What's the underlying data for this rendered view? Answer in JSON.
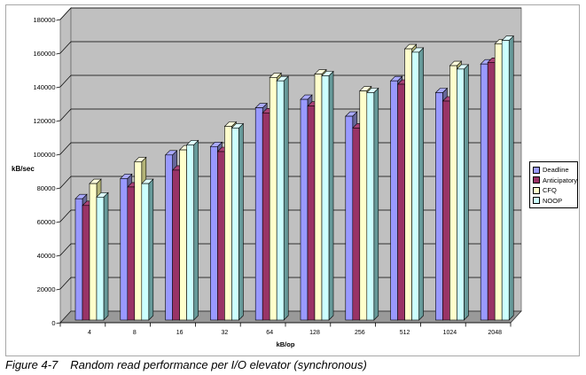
{
  "figure": {
    "caption_label": "Figure 4-7",
    "caption_text": "Random read performance per I/O elevator (synchronous)"
  },
  "chart_data": {
    "type": "bar",
    "subtype": "3d-clustered-column",
    "title": "",
    "xlabel": "kB/op",
    "ylabel": "kB/sec",
    "ylim": [
      0,
      180000
    ],
    "ytick_step": 20000,
    "grid": "horizontal",
    "legend_position": "right",
    "wall_color": "#c0c0c0",
    "floor_color": "#999999",
    "categories": [
      "4",
      "8",
      "16",
      "32",
      "64",
      "128",
      "256",
      "512",
      "1024",
      "2048"
    ],
    "series": [
      {
        "name": "Deadline",
        "color": "#9999ff",
        "side_color": "#666699",
        "top_color": "#aaaaff",
        "values": [
          72000,
          84000,
          98000,
          103000,
          126000,
          131000,
          121000,
          142000,
          135000,
          152000
        ]
      },
      {
        "name": "Anticipatory",
        "color": "#993366",
        "side_color": "#662244",
        "top_color": "#aa4477",
        "values": [
          68000,
          79000,
          89000,
          100000,
          123000,
          127000,
          114000,
          140000,
          130000,
          153000
        ]
      },
      {
        "name": "CFQ",
        "color": "#ffffcc",
        "side_color": "#b3b377",
        "top_color": "#ffffdd",
        "values": [
          81000,
          94000,
          101000,
          115000,
          144000,
          146000,
          136000,
          161000,
          151000,
          164000
        ]
      },
      {
        "name": "NOOP",
        "color": "#ccffff",
        "side_color": "#669999",
        "top_color": "#ddffff",
        "values": [
          73000,
          81000,
          104000,
          114000,
          142000,
          145000,
          135000,
          159000,
          149000,
          166000
        ]
      }
    ]
  }
}
